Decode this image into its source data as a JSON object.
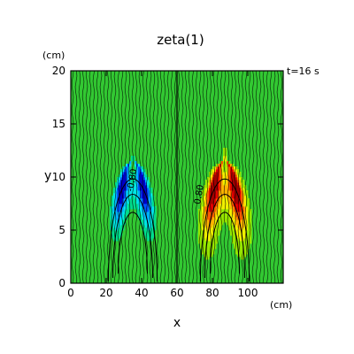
{
  "chart_data": {
    "type": "heatmap",
    "title": "zeta(1)",
    "time_label": "t=16 s",
    "xlabel": "x",
    "ylabel": "y",
    "x_unit": "(cm)",
    "y_unit": "(cm)",
    "xlim": [
      0,
      120
    ],
    "ylim": [
      0,
      20
    ],
    "x_ticks": [
      0,
      20,
      40,
      60,
      80,
      100
    ],
    "y_ticks": [
      0,
      5,
      10,
      15,
      20
    ],
    "colormap": [
      "#0000c8",
      "#0050ff",
      "#00b4ff",
      "#00e6e6",
      "#00dc8c",
      "#32c832",
      "#96e600",
      "#f0f000",
      "#ffb400",
      "#ff5a00",
      "#e60000",
      "#a00000"
    ],
    "background_level_color": "#32c832",
    "contour_labels": [
      {
        "x": 35,
        "y": 8.6,
        "text": "-0.80"
      },
      {
        "x": 73,
        "y": 7.4,
        "text": "0.80"
      }
    ],
    "lobes": [
      {
        "name": "negative",
        "center_x": 35,
        "peak_y": 8.8,
        "peak_value": -1.0
      },
      {
        "name": "positive",
        "center_x": 87,
        "peak_y": 8.8,
        "peak_value": 1.0
      }
    ],
    "divider_x": 60
  }
}
